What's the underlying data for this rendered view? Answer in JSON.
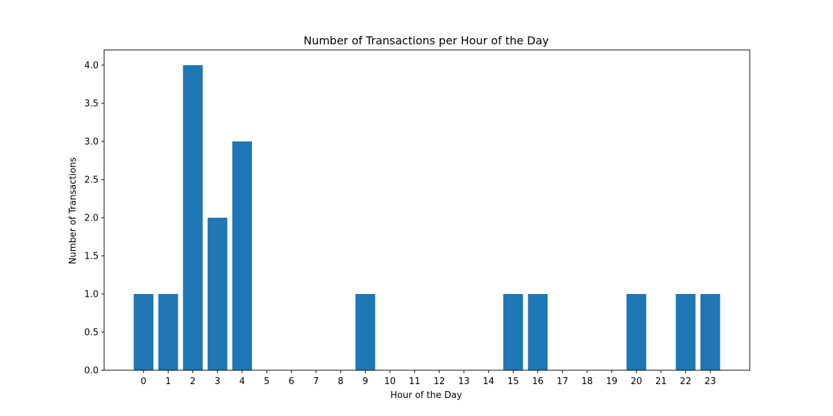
{
  "chart_data": {
    "type": "bar",
    "title": "Number of Transactions per Hour of the Day",
    "xlabel": "Hour of the Day",
    "ylabel": "Number of Transactions",
    "categories": [
      "0",
      "1",
      "2",
      "3",
      "4",
      "5",
      "6",
      "7",
      "8",
      "9",
      "10",
      "11",
      "12",
      "13",
      "14",
      "15",
      "16",
      "17",
      "18",
      "19",
      "20",
      "21",
      "22",
      "23"
    ],
    "values": [
      1,
      1,
      4,
      2,
      3,
      0,
      0,
      0,
      0,
      1,
      0,
      0,
      0,
      0,
      0,
      1,
      1,
      0,
      0,
      0,
      1,
      0,
      1,
      1
    ],
    "ylim": [
      0,
      4.2
    ],
    "xlim": [
      -1.6,
      24.6
    ],
    "yticks": [
      "0.0",
      "0.5",
      "1.0",
      "1.5",
      "2.0",
      "2.5",
      "3.0",
      "3.5",
      "4.0"
    ],
    "bar_color": "#1f77b4",
    "grid": false,
    "legend": "none"
  }
}
